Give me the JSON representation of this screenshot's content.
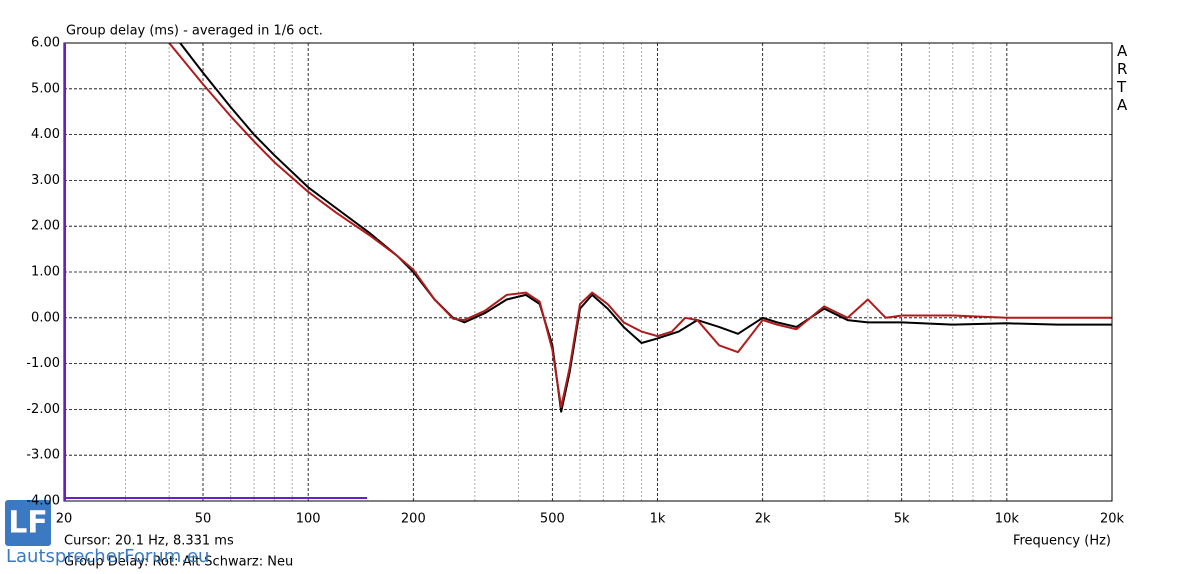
{
  "chart_data": {
    "type": "line",
    "title": "Group delay (ms) - averaged in 1/6 oct.",
    "brand": "ARTA",
    "cursor": "Cursor: 20.1 Hz, 8.331 ms",
    "legend_text": "Group Delay: Rot: Alt  Schwarz: Neu",
    "x_label": "Frequency (Hz)",
    "logo": "LF",
    "logo_text": "LautsprecherForum.eu",
    "xscale": "log",
    "grid": true,
    "xlim": [
      20,
      20000
    ],
    "ylim": [
      -4,
      6
    ],
    "xticks": [
      20,
      50,
      100,
      200,
      500,
      {
        "value": 1000,
        "label": "1k"
      },
      {
        "value": 2000,
        "label": "2k"
      },
      {
        "value": 5000,
        "label": "5k"
      },
      {
        "value": 10000,
        "label": "10k"
      },
      {
        "value": 20000,
        "label": "20k"
      }
    ],
    "xminor": [
      30,
      40,
      60,
      70,
      80,
      90,
      300,
      400,
      600,
      700,
      800,
      900,
      3000,
      4000,
      6000,
      7000,
      8000,
      9000
    ],
    "yticks": [
      {
        "value": 6,
        "label": "6.00"
      },
      {
        "value": 5,
        "label": "5.00"
      },
      {
        "value": 4,
        "label": "4.00"
      },
      {
        "value": 3,
        "label": "3.00"
      },
      {
        "value": 2,
        "label": "2.00"
      },
      {
        "value": 1,
        "label": "1.00"
      },
      {
        "value": 0,
        "label": "0.00"
      },
      {
        "value": -1,
        "label": "-1.00"
      },
      {
        "value": -2,
        "label": "-2.00"
      },
      {
        "value": -3,
        "label": "-3.00"
      },
      {
        "value": -4,
        "label": "-4.00"
      }
    ],
    "series": [
      {
        "color": "#000000",
        "x": [
          43,
          50,
          60,
          70,
          80,
          100,
          120,
          150,
          180,
          200,
          230,
          260,
          280,
          320,
          370,
          420,
          460,
          500,
          530,
          560,
          600,
          650,
          720,
          800,
          900,
          1000,
          1150,
          1300,
          1500,
          1700,
          2000,
          2200,
          2500,
          3000,
          3500,
          4000,
          5000,
          7000,
          10000,
          14000,
          20000
        ],
        "values": [
          6.0,
          5.35,
          4.6,
          4.0,
          3.55,
          2.85,
          2.4,
          1.85,
          1.35,
          1.0,
          0.4,
          0.0,
          -0.1,
          0.1,
          0.4,
          0.5,
          0.3,
          -0.6,
          -2.05,
          -1.2,
          0.2,
          0.5,
          0.2,
          -0.2,
          -0.55,
          -0.45,
          -0.3,
          -0.05,
          -0.2,
          -0.35,
          0.0,
          -0.1,
          -0.2,
          0.2,
          -0.05,
          -0.1,
          -0.1,
          -0.15,
          -0.12,
          -0.15,
          -0.15
        ]
      },
      {
        "color": "#b01c1c",
        "x": [
          40,
          50,
          60,
          70,
          80,
          100,
          120,
          150,
          180,
          200,
          230,
          260,
          280,
          320,
          370,
          420,
          460,
          500,
          530,
          560,
          600,
          650,
          720,
          800,
          900,
          1000,
          1100,
          1200,
          1300,
          1500,
          1700,
          2000,
          2200,
          2500,
          3000,
          3500,
          4000,
          4500,
          5000,
          7000,
          10000,
          14000,
          20000
        ],
        "values": [
          6.0,
          5.1,
          4.4,
          3.85,
          3.4,
          2.75,
          2.3,
          1.8,
          1.35,
          1.05,
          0.4,
          -0.02,
          -0.05,
          0.15,
          0.5,
          0.55,
          0.35,
          -0.7,
          -1.95,
          -1.1,
          0.3,
          0.55,
          0.3,
          -0.1,
          -0.3,
          -0.4,
          -0.3,
          0.0,
          -0.05,
          -0.6,
          -0.75,
          -0.05,
          -0.15,
          -0.25,
          0.25,
          0.0,
          0.4,
          0.0,
          0.05,
          0.05,
          0.0,
          0.0,
          0.0
        ]
      }
    ]
  }
}
